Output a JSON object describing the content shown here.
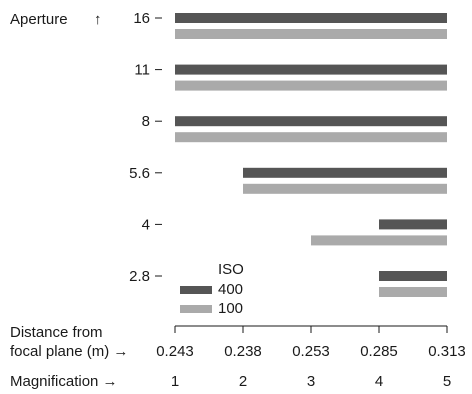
{
  "chart_data": {
    "type": "bar",
    "orientation": "horizontal-range",
    "y_title": "Aperture",
    "y_title_arrow": "↑",
    "apertures": [
      "16",
      "11",
      "8",
      "5.6",
      "4",
      "2.8"
    ],
    "x_rows": [
      {
        "label_lines": [
          "Distance from",
          "focal plane (m)"
        ],
        "arrow": "→",
        "values": [
          "0.243",
          "0.238",
          "0.253",
          "0.285",
          "0.313"
        ]
      },
      {
        "label_lines": [
          "Magnification"
        ],
        "arrow": "→",
        "values": [
          "1",
          "2",
          "3",
          "4",
          "5"
        ]
      }
    ],
    "x_range": [
      1,
      5
    ],
    "legend": {
      "title": "ISO",
      "placement": "bottom-left"
    },
    "series": [
      {
        "name": "400",
        "color": "#555555",
        "ranges": [
          {
            "aperture": "16",
            "start": 1,
            "end": 5
          },
          {
            "aperture": "11",
            "start": 1,
            "end": 5
          },
          {
            "aperture": "8",
            "start": 1,
            "end": 5
          },
          {
            "aperture": "5.6",
            "start": 2,
            "end": 5
          },
          {
            "aperture": "4",
            "start": 4,
            "end": 5
          },
          {
            "aperture": "2.8",
            "start": 4,
            "end": 5
          }
        ]
      },
      {
        "name": "100",
        "color": "#aaaaaa",
        "ranges": [
          {
            "aperture": "16",
            "start": 1,
            "end": 5
          },
          {
            "aperture": "11",
            "start": 1,
            "end": 5
          },
          {
            "aperture": "8",
            "start": 1,
            "end": 5
          },
          {
            "aperture": "5.6",
            "start": 2,
            "end": 5
          },
          {
            "aperture": "4",
            "start": 3,
            "end": 5
          },
          {
            "aperture": "2.8",
            "start": 4,
            "end": 5
          }
        ]
      }
    ]
  }
}
